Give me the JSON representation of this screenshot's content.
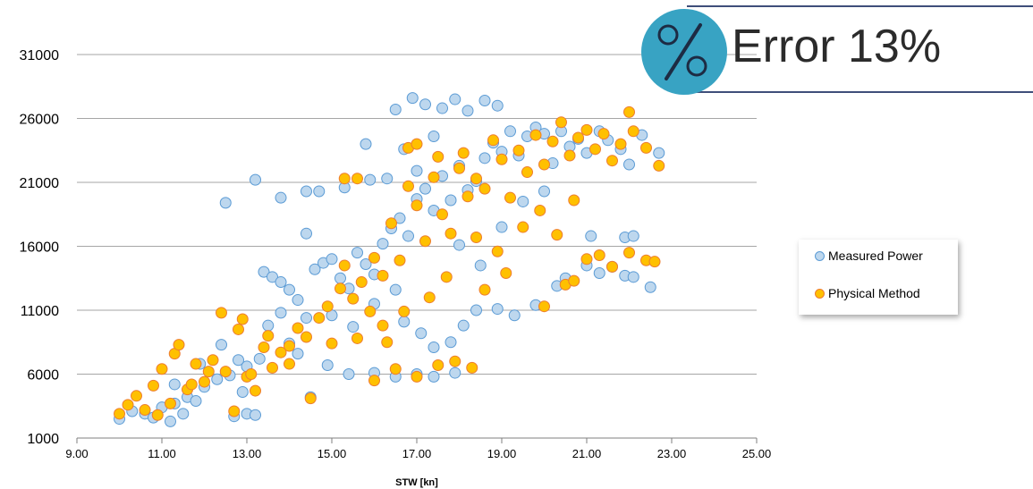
{
  "callout": {
    "text": "Error 13%",
    "icon": "percent-icon",
    "badge_color": "#38a3c3",
    "line_color": "#3f4e7a"
  },
  "chart_data": {
    "type": "scatter",
    "title": "",
    "xlabel": "STW [kn]",
    "ylabel": "",
    "xlim": [
      9,
      25
    ],
    "ylim": [
      1000,
      31000
    ],
    "xticks": [
      "9.00",
      "11.00",
      "13.00",
      "15.00",
      "17.00",
      "19.00",
      "21.00",
      "23.00",
      "25.00"
    ],
    "yticks": [
      "1000",
      "6000",
      "11000",
      "16000",
      "21000",
      "26000",
      "31000"
    ],
    "grid": "horizontal",
    "legend_position": "right",
    "series": [
      {
        "name": "Measured Power",
        "color": "#bdd7ee",
        "edge_color": "#5b9bd5",
        "points": [
          [
            10.0,
            2500
          ],
          [
            10.3,
            3100
          ],
          [
            10.6,
            2900
          ],
          [
            10.8,
            2600
          ],
          [
            11.0,
            3400
          ],
          [
            11.2,
            2300
          ],
          [
            11.3,
            3700
          ],
          [
            11.5,
            2900
          ],
          [
            11.6,
            4200
          ],
          [
            11.8,
            3900
          ],
          [
            12.0,
            5000
          ],
          [
            12.3,
            5600
          ],
          [
            12.4,
            8300
          ],
          [
            12.6,
            5900
          ],
          [
            12.7,
            2700
          ],
          [
            12.9,
            4600
          ],
          [
            13.0,
            2900
          ],
          [
            13.2,
            2800
          ],
          [
            13.3,
            7200
          ],
          [
            13.5,
            9800
          ],
          [
            13.4,
            14000
          ],
          [
            13.6,
            13600
          ],
          [
            13.8,
            13200
          ],
          [
            14.0,
            12600
          ],
          [
            14.2,
            11800
          ],
          [
            14.4,
            10400
          ],
          [
            14.6,
            14200
          ],
          [
            14.8,
            14700
          ],
          [
            15.0,
            15000
          ],
          [
            15.2,
            13500
          ],
          [
            15.4,
            12700
          ],
          [
            15.6,
            15500
          ],
          [
            15.8,
            14600
          ],
          [
            16.0,
            13800
          ],
          [
            16.2,
            16200
          ],
          [
            16.4,
            17400
          ],
          [
            16.6,
            18200
          ],
          [
            16.8,
            16800
          ],
          [
            17.0,
            19700
          ],
          [
            17.2,
            20500
          ],
          [
            17.4,
            18800
          ],
          [
            17.6,
            21500
          ],
          [
            17.8,
            19600
          ],
          [
            18.0,
            22300
          ],
          [
            18.2,
            20400
          ],
          [
            18.4,
            21100
          ],
          [
            18.6,
            22900
          ],
          [
            18.8,
            24100
          ],
          [
            19.0,
            23400
          ],
          [
            19.2,
            25000
          ],
          [
            19.4,
            23100
          ],
          [
            19.6,
            24600
          ],
          [
            19.8,
            25300
          ],
          [
            20.0,
            24800
          ],
          [
            20.2,
            22500
          ],
          [
            20.4,
            25000
          ],
          [
            20.6,
            23800
          ],
          [
            20.8,
            24400
          ],
          [
            21.0,
            23300
          ],
          [
            21.3,
            25000
          ],
          [
            21.5,
            24300
          ],
          [
            21.8,
            23600
          ],
          [
            22.0,
            22400
          ],
          [
            22.3,
            24700
          ],
          [
            22.7,
            23300
          ],
          [
            16.5,
            26700
          ],
          [
            16.9,
            27600
          ],
          [
            17.2,
            27100
          ],
          [
            17.6,
            26800
          ],
          [
            17.9,
            27500
          ],
          [
            18.2,
            26600
          ],
          [
            18.6,
            27400
          ],
          [
            18.9,
            27000
          ],
          [
            16.7,
            23600
          ],
          [
            17.0,
            21900
          ],
          [
            17.4,
            24600
          ],
          [
            15.8,
            24000
          ],
          [
            13.2,
            21200
          ],
          [
            12.5,
            19400
          ],
          [
            13.8,
            19800
          ],
          [
            14.4,
            20300
          ],
          [
            14.7,
            20300
          ],
          [
            15.3,
            20600
          ],
          [
            15.9,
            21200
          ],
          [
            16.3,
            21300
          ],
          [
            14.4,
            17000
          ],
          [
            16.7,
            10100
          ],
          [
            17.1,
            9200
          ],
          [
            17.4,
            8100
          ],
          [
            17.8,
            8500
          ],
          [
            18.1,
            9800
          ],
          [
            18.4,
            11000
          ],
          [
            18.9,
            11100
          ],
          [
            19.3,
            10600
          ],
          [
            19.8,
            11400
          ],
          [
            16.5,
            5800
          ],
          [
            17.0,
            6000
          ],
          [
            17.4,
            5800
          ],
          [
            17.9,
            6100
          ],
          [
            16.0,
            6100
          ],
          [
            15.4,
            6000
          ],
          [
            14.9,
            6700
          ],
          [
            14.5,
            4200
          ],
          [
            13.0,
            6600
          ],
          [
            21.0,
            14500
          ],
          [
            21.3,
            13900
          ],
          [
            21.6,
            14400
          ],
          [
            21.9,
            13700
          ],
          [
            22.1,
            13600
          ],
          [
            22.5,
            12800
          ],
          [
            21.1,
            16800
          ],
          [
            21.9,
            16700
          ],
          [
            22.1,
            16800
          ],
          [
            20.3,
            12900
          ],
          [
            20.5,
            13500
          ],
          [
            18.0,
            16100
          ],
          [
            18.5,
            14500
          ],
          [
            19.0,
            17500
          ],
          [
            19.5,
            19500
          ],
          [
            20.0,
            20300
          ],
          [
            15.0,
            10600
          ],
          [
            15.5,
            9700
          ],
          [
            16.0,
            11500
          ],
          [
            16.5,
            12600
          ],
          [
            14.0,
            8400
          ],
          [
            13.8,
            10800
          ],
          [
            14.2,
            7600
          ],
          [
            12.8,
            7100
          ],
          [
            11.9,
            6800
          ],
          [
            11.3,
            5200
          ]
        ]
      },
      {
        "name": "Physical Method",
        "color": "#ffc000",
        "edge_color": "#ed7d31",
        "points": [
          [
            10.0,
            2900
          ],
          [
            10.2,
            3600
          ],
          [
            10.4,
            4300
          ],
          [
            10.6,
            3200
          ],
          [
            10.8,
            5100
          ],
          [
            10.9,
            2800
          ],
          [
            11.0,
            6400
          ],
          [
            11.2,
            3700
          ],
          [
            11.3,
            7600
          ],
          [
            11.4,
            8300
          ],
          [
            11.6,
            4800
          ],
          [
            11.8,
            6800
          ],
          [
            12.0,
            5400
          ],
          [
            12.2,
            7100
          ],
          [
            12.4,
            10800
          ],
          [
            12.5,
            6200
          ],
          [
            12.7,
            3100
          ],
          [
            12.9,
            10300
          ],
          [
            13.0,
            5800
          ],
          [
            13.2,
            4700
          ],
          [
            13.4,
            8100
          ],
          [
            13.6,
            6500
          ],
          [
            13.8,
            7700
          ],
          [
            14.0,
            8200
          ],
          [
            14.2,
            9600
          ],
          [
            14.4,
            8900
          ],
          [
            14.5,
            4100
          ],
          [
            14.7,
            10400
          ],
          [
            14.9,
            11300
          ],
          [
            15.0,
            8400
          ],
          [
            15.2,
            12700
          ],
          [
            15.3,
            14500
          ],
          [
            15.5,
            11900
          ],
          [
            15.7,
            13200
          ],
          [
            15.9,
            10900
          ],
          [
            16.0,
            15100
          ],
          [
            16.2,
            13700
          ],
          [
            16.4,
            17800
          ],
          [
            16.6,
            14900
          ],
          [
            16.8,
            20700
          ],
          [
            17.0,
            19200
          ],
          [
            17.2,
            16400
          ],
          [
            17.4,
            21400
          ],
          [
            17.6,
            18500
          ],
          [
            17.8,
            17000
          ],
          [
            18.0,
            22100
          ],
          [
            18.2,
            19900
          ],
          [
            18.4,
            21300
          ],
          [
            18.6,
            20500
          ],
          [
            18.8,
            24300
          ],
          [
            19.0,
            22800
          ],
          [
            19.2,
            19800
          ],
          [
            19.4,
            23500
          ],
          [
            19.6,
            21800
          ],
          [
            19.8,
            24700
          ],
          [
            20.0,
            22400
          ],
          [
            20.2,
            24200
          ],
          [
            20.4,
            25700
          ],
          [
            20.6,
            23100
          ],
          [
            20.8,
            24500
          ],
          [
            21.0,
            25100
          ],
          [
            21.2,
            23600
          ],
          [
            21.4,
            24800
          ],
          [
            21.6,
            22700
          ],
          [
            21.8,
            24000
          ],
          [
            22.0,
            26500
          ],
          [
            22.1,
            25000
          ],
          [
            22.4,
            23700
          ],
          [
            22.7,
            22300
          ],
          [
            16.8,
            23700
          ],
          [
            17.0,
            24000
          ],
          [
            17.5,
            23000
          ],
          [
            18.1,
            23300
          ],
          [
            15.3,
            21300
          ],
          [
            15.6,
            21300
          ],
          [
            16.0,
            5500
          ],
          [
            16.5,
            6400
          ],
          [
            17.0,
            5800
          ],
          [
            17.5,
            6700
          ],
          [
            17.9,
            7000
          ],
          [
            18.3,
            6500
          ],
          [
            20.0,
            11300
          ],
          [
            20.5,
            13000
          ],
          [
            20.7,
            13300
          ],
          [
            21.0,
            15000
          ],
          [
            21.3,
            15300
          ],
          [
            21.6,
            14400
          ],
          [
            22.0,
            15500
          ],
          [
            22.4,
            14900
          ],
          [
            22.6,
            14800
          ],
          [
            14.0,
            6800
          ],
          [
            13.5,
            9000
          ],
          [
            12.8,
            9500
          ],
          [
            12.1,
            6200
          ],
          [
            11.7,
            5200
          ],
          [
            13.1,
            6000
          ],
          [
            16.2,
            9800
          ],
          [
            16.7,
            10900
          ],
          [
            17.3,
            12000
          ],
          [
            17.7,
            13600
          ],
          [
            18.4,
            16700
          ],
          [
            18.9,
            15600
          ],
          [
            19.5,
            17500
          ],
          [
            19.9,
            18800
          ],
          [
            20.3,
            16900
          ],
          [
            20.7,
            19600
          ],
          [
            19.1,
            13900
          ],
          [
            18.6,
            12600
          ],
          [
            16.3,
            8500
          ],
          [
            15.6,
            8800
          ]
        ]
      }
    ]
  }
}
